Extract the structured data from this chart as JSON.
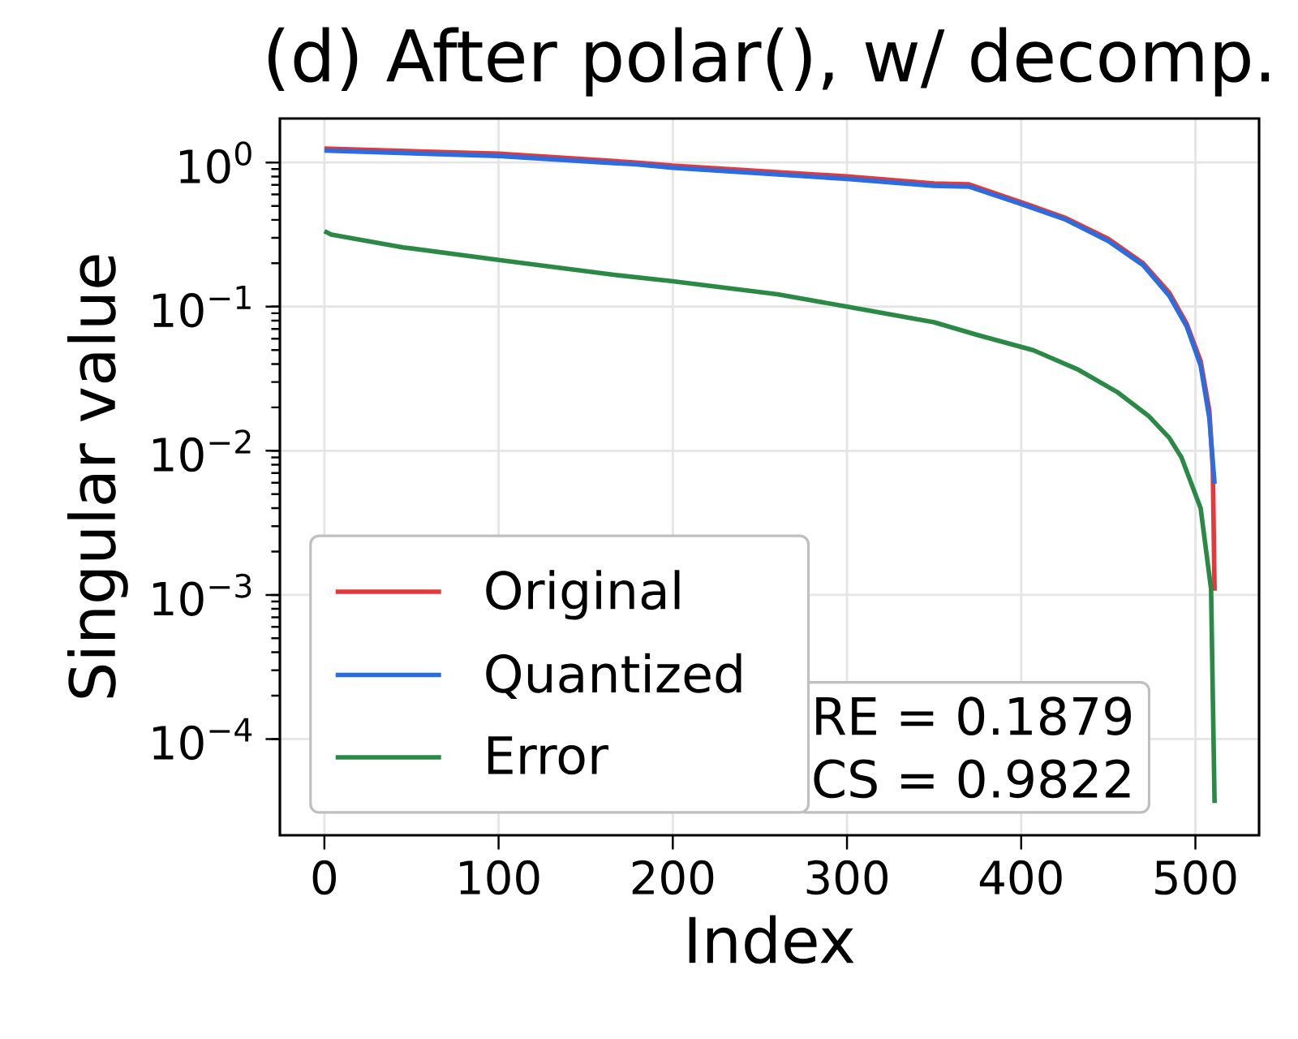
{
  "chart_data": {
    "type": "line",
    "title": "(d) After polar(), w/ decomp.",
    "xlabel": "Index",
    "ylabel": "Singular value",
    "log": "y",
    "grid": true,
    "legend": "bottom left",
    "line_style": "solid",
    "marker": "none",
    "xlim": [
      -25.55,
      536.55
    ],
    "xticks": [
      0,
      100,
      200,
      300,
      400,
      500
    ],
    "ylim": [
      2.15e-05,
      2.02
    ],
    "yticks": [
      {
        "value": 0.0001,
        "label": "10$^{−4}$"
      },
      {
        "value": 0.001,
        "label": "10$^{−3}$"
      },
      {
        "value": 0.01,
        "label": "10$^{−2}$"
      },
      {
        "value": 0.1,
        "label": "10$^{−1}$"
      },
      {
        "value": 1,
        "label": "10$^{0}$"
      }
    ],
    "annotations": [
      "RE = 0.1879",
      "CS = 0.9822"
    ],
    "series": [
      {
        "name": "Original",
        "color": "#e5383b",
        "x": [
          0,
          100,
          179,
          200,
          300,
          350,
          370,
          400,
          425,
          450,
          470,
          485,
          495,
          503,
          508,
          510,
          511
        ],
        "values": [
          1.25,
          1.15,
          1.0,
          0.95,
          0.8,
          0.715,
          0.705,
          0.53,
          0.415,
          0.295,
          0.2,
          0.125,
          0.076,
          0.042,
          0.019,
          0.0075,
          0.00107
        ]
      },
      {
        "name": "Quantized",
        "color": "#2b6cdf",
        "x": [
          0,
          100,
          179,
          200,
          300,
          350,
          370,
          400,
          425,
          450,
          470,
          485,
          495,
          503,
          508,
          511
        ],
        "values": [
          1.21,
          1.11,
          0.97,
          0.92,
          0.77,
          0.69,
          0.68,
          0.515,
          0.404,
          0.285,
          0.194,
          0.119,
          0.073,
          0.039,
          0.0169,
          0.0059
        ]
      },
      {
        "name": "Error",
        "color": "#2a8a45",
        "x": [
          0,
          4,
          45,
          100,
          167,
          200,
          260,
          300,
          350,
          375,
          407,
          433,
          455,
          473,
          485,
          492,
          503,
          509,
          511
        ],
        "values": [
          0.334,
          0.316,
          0.258,
          0.211,
          0.166,
          0.15,
          0.122,
          0.1,
          0.078,
          0.0635,
          0.0498,
          0.0364,
          0.0256,
          0.0175,
          0.0123,
          0.009,
          0.004,
          0.0011,
          3.6e-05
        ]
      }
    ]
  }
}
